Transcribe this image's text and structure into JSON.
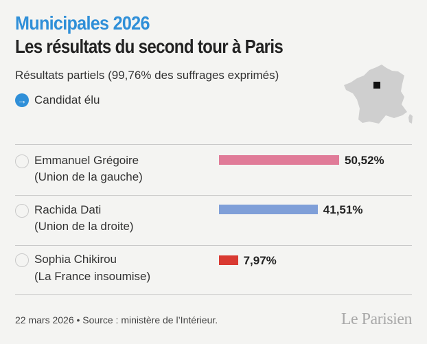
{
  "header": {
    "kicker": "Municipales 2026",
    "title": "Les résultats du second tour à Paris",
    "subtitle": "Résultats partiels (99,76% des suffrages exprimés)"
  },
  "legend": {
    "icon": "arrow-right-icon",
    "label": "Candidat élu"
  },
  "map": {
    "icon": "france-map-icon",
    "highlight": "Paris"
  },
  "chart_data": {
    "type": "bar",
    "orientation": "horizontal",
    "title": "Les résultats du second tour à Paris",
    "unit": "%",
    "xlim": [
      0,
      100
    ],
    "categories": [
      "Emmanuel Grégoire",
      "Rachida Dati",
      "Sophia Chikirou"
    ],
    "parties": [
      "(Union de la gauche)",
      "(Union de la droite)",
      "(La France insoumise)"
    ],
    "values": [
      50.52,
      41.51,
      7.97
    ],
    "labels": [
      "50,52%",
      "41,51%",
      "7,97%"
    ],
    "colors": [
      "#e07b98",
      "#7f9fd8",
      "#d93a32"
    ]
  },
  "footer": {
    "source": "22 mars 2026 • Source : ministère de l’Intérieur.",
    "logo": "Le Parisien"
  }
}
